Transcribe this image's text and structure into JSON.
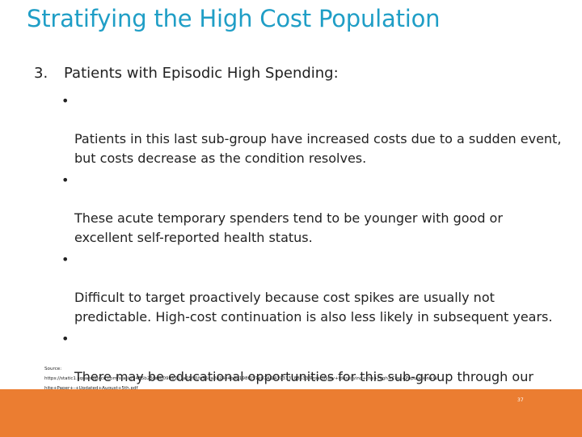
{
  "slide": {
    "title": "Stratifying the High Cost Population",
    "section_number": "3.",
    "section_heading": "Patients with Episodic High Spending:",
    "bullets": [
      {
        "marker": "•",
        "text": "Patients in this last sub-group have increased costs due to a sudden event,\nbut costs decrease as the condition resolves."
      },
      {
        "marker": "•",
        "text": "These acute temporary spenders tend to be younger with good or\nexcellent self-reported health status."
      },
      {
        "marker": "•",
        "text": "Difficult to target proactively because cost spikes are usually not\npredictable.  High-cost continuation is also less likely in subsequent years."
      },
      {
        "marker": "•",
        "text": "There may be educational opportunities for this sub-group through our\nwork."
      }
    ],
    "source": "Source:\nhttps://static1.squarespace.com/static/5485b25fe4b0991211a05ff0/t/55ca2d24e4b0d198f157eb74/1439313188533/Proactively+Identifying+the+High+Cost+Population+W\nhite+Paper+-+Updated+August+5th.pdf",
    "page_number": "37",
    "colors": {
      "title": "#1f9ec6",
      "footer": "#eb7d31",
      "text": "#222222"
    }
  }
}
